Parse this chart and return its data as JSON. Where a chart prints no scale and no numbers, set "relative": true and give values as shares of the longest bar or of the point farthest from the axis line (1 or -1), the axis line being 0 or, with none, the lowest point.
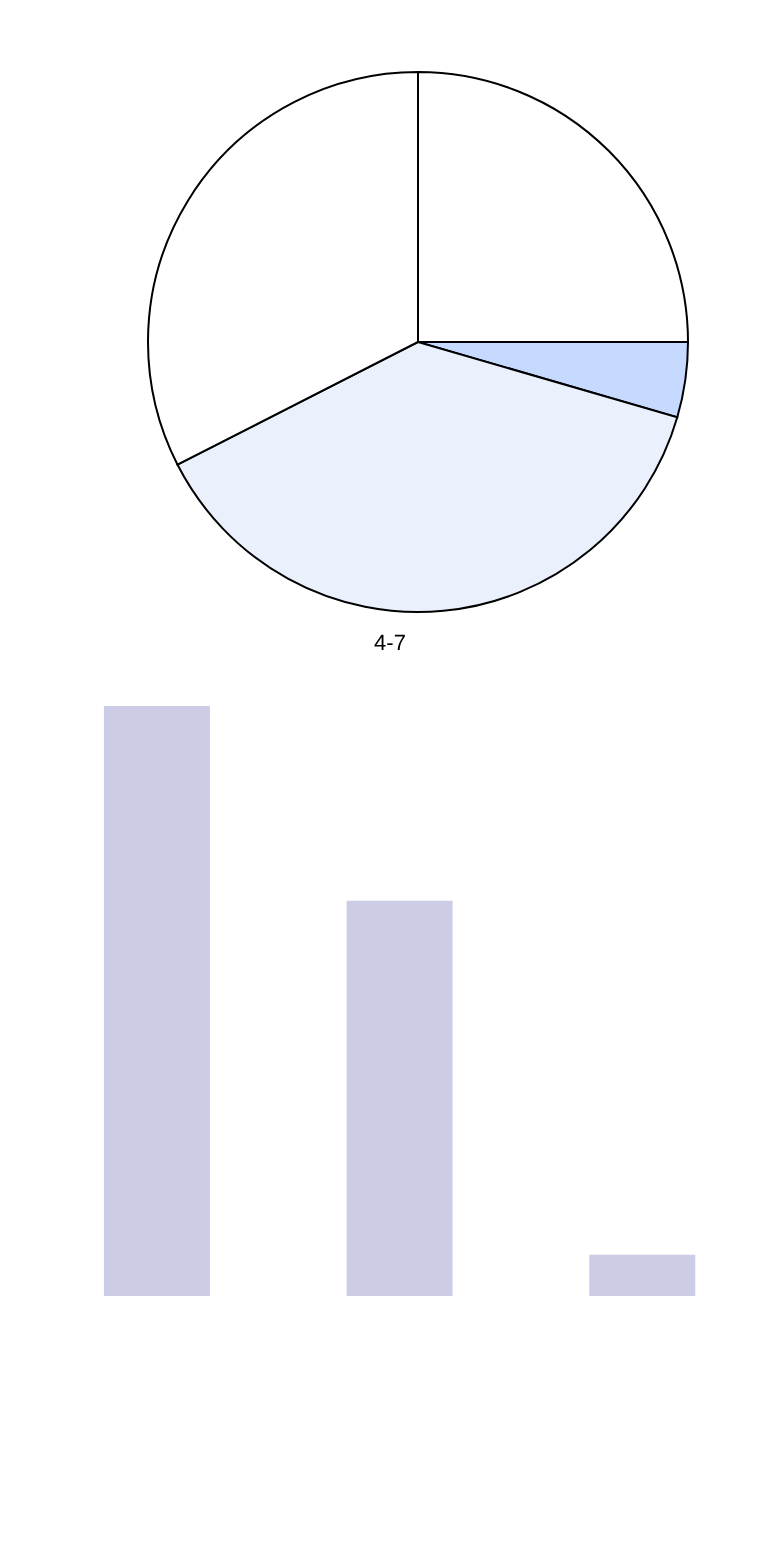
{
  "chart_data": [
    {
      "type": "pie",
      "title": "4-7",
      "categories": [
        null,
        null,
        null,
        null
      ],
      "values": [
        25,
        4.5,
        38,
        32.5
      ],
      "colors": [
        "#ffffff",
        "#c6d9ff",
        "#eaf0fc",
        "#ffffff"
      ]
    },
    {
      "type": "bar",
      "relative": true,
      "categories": [
        null,
        null,
        null
      ],
      "values": [
        1,
        0.67,
        0.07
      ],
      "color": "#ccccE6"
    }
  ]
}
